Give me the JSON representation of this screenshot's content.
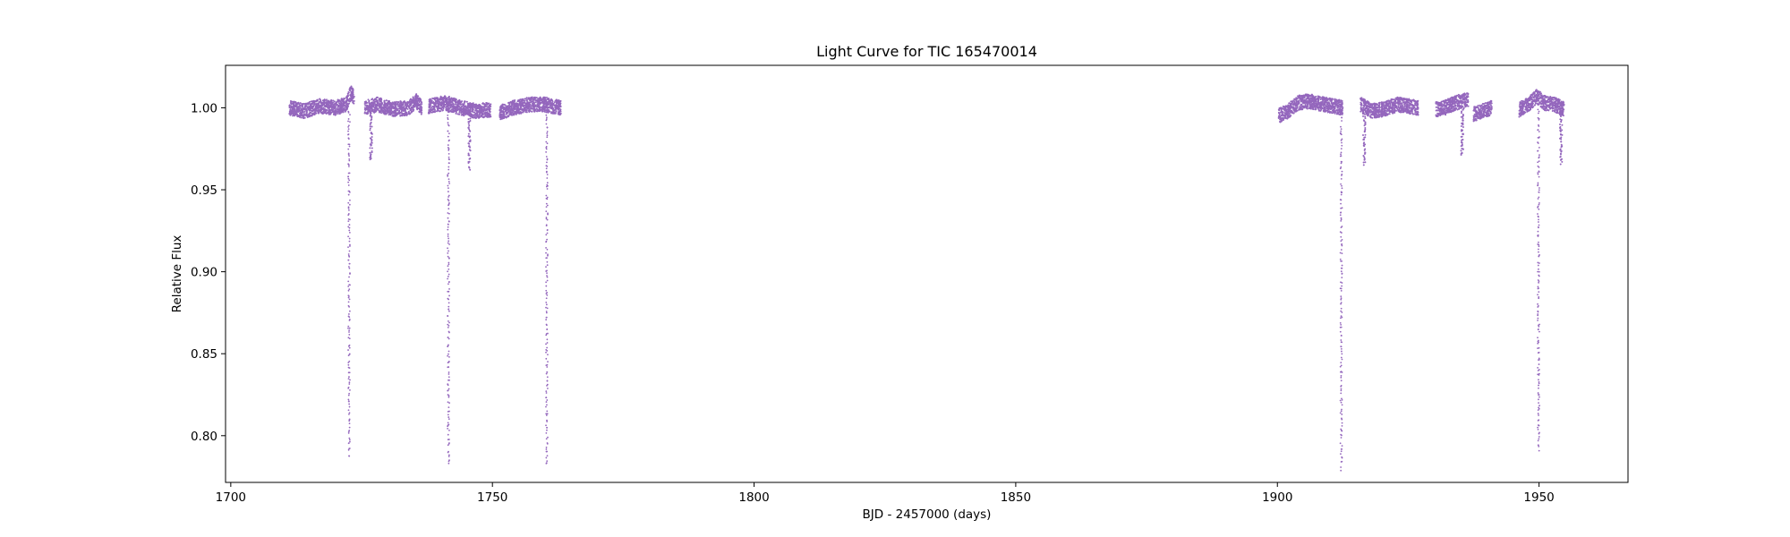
{
  "chart_data": {
    "type": "scatter",
    "title": "Light Curve for TIC 165470014",
    "xlabel": "BJD - 2457000 (days)",
    "ylabel": "Relative Flux",
    "xlim": [
      1699,
      1967
    ],
    "ylim": [
      0.7715,
      1.0259
    ],
    "xticks": [
      1700,
      1750,
      1800,
      1850,
      1900,
      1950
    ],
    "yticks": [
      0.8,
      0.85,
      0.9,
      0.95,
      1.0
    ],
    "grid": false,
    "legend": "none",
    "color": "#9467bd",
    "series": [
      {
        "segments": [
          {
            "x_start": 1711.2,
            "x_end": 1723.6,
            "baseline": 1.0,
            "trend": [
              [
                1711.2,
                1.0
              ],
              [
                1714.0,
                0.998
              ],
              [
                1717.0,
                1.001
              ],
              [
                1720.0,
                1.0
              ],
              [
                1722.0,
                1.002
              ],
              [
                1723.0,
                1.009
              ],
              [
                1723.6,
                1.006
              ]
            ]
          },
          {
            "x_start": 1725.6,
            "x_end": 1736.5,
            "baseline": 1.0,
            "trend": [
              [
                1725.6,
                1.0
              ],
              [
                1728.0,
                1.002
              ],
              [
                1731.0,
                0.999
              ],
              [
                1734.0,
                1.0
              ],
              [
                1735.5,
                1.004
              ],
              [
                1736.5,
                1.0
              ]
            ]
          },
          {
            "x_start": 1737.8,
            "x_end": 1749.7,
            "baseline": 1.0,
            "trend": [
              [
                1737.8,
                1.001
              ],
              [
                1741.0,
                1.003
              ],
              [
                1744.0,
                1.0
              ],
              [
                1747.0,
                0.998
              ],
              [
                1749.7,
                0.999
              ]
            ]
          },
          {
            "x_start": 1751.4,
            "x_end": 1763.1,
            "baseline": 1.0,
            "trend": [
              [
                1751.4,
                0.997
              ],
              [
                1754.0,
                1.0
              ],
              [
                1757.0,
                1.002
              ],
              [
                1760.0,
                1.002
              ],
              [
                1763.1,
                1.0
              ]
            ]
          },
          {
            "x_start": 1900.2,
            "x_end": 1912.5,
            "baseline": 1.0,
            "trend": [
              [
                1900.2,
                0.995
              ],
              [
                1902.0,
                0.998
              ],
              [
                1904.0,
                1.003
              ],
              [
                1906.0,
                1.004
              ],
              [
                1909.0,
                1.002
              ],
              [
                1912.5,
                1.0
              ]
            ]
          },
          {
            "x_start": 1915.9,
            "x_end": 1926.9,
            "baseline": 1.0,
            "trend": [
              [
                1915.9,
                1.002
              ],
              [
                1918.0,
                0.998
              ],
              [
                1920.0,
                0.999
              ],
              [
                1923.0,
                1.002
              ],
              [
                1926.9,
                1.0
              ]
            ]
          },
          {
            "x_start": 1930.3,
            "x_end": 1936.5,
            "baseline": 1.0,
            "trend": [
              [
                1930.3,
                0.999
              ],
              [
                1932.0,
                1.0
              ],
              [
                1934.0,
                1.003
              ],
              [
                1935.5,
                1.004
              ],
              [
                1936.5,
                1.005
              ]
            ]
          },
          {
            "x_start": 1937.5,
            "x_end": 1941.0,
            "baseline": 1.0,
            "trend": [
              [
                1937.5,
                0.996
              ],
              [
                1939.0,
                0.998
              ],
              [
                1941.0,
                1.0
              ]
            ]
          },
          {
            "x_start": 1946.2,
            "x_end": 1954.8,
            "baseline": 1.0,
            "trend": [
              [
                1946.2,
                0.999
              ],
              [
                1948.0,
                1.002
              ],
              [
                1949.6,
                1.007
              ],
              [
                1951.0,
                1.003
              ],
              [
                1953.0,
                1.002
              ],
              [
                1954.8,
                0.999
              ]
            ]
          }
        ],
        "deep_eclipses": [
          {
            "x": 1722.6,
            "min": 0.787
          },
          {
            "x": 1741.6,
            "min": 0.783
          },
          {
            "x": 1760.4,
            "min": 0.782
          },
          {
            "x": 1912.2,
            "min": 0.78
          },
          {
            "x": 1949.9,
            "min": 0.791
          }
        ],
        "shallow_eclipses": [
          {
            "x": 1726.8,
            "min": 0.968
          },
          {
            "x": 1745.6,
            "min": 0.963
          },
          {
            "x": 1916.6,
            "min": 0.966
          },
          {
            "x": 1935.3,
            "min": 0.971
          },
          {
            "x": 1954.2,
            "min": 0.966
          }
        ],
        "scatter_amplitude": 0.0045
      }
    ]
  }
}
